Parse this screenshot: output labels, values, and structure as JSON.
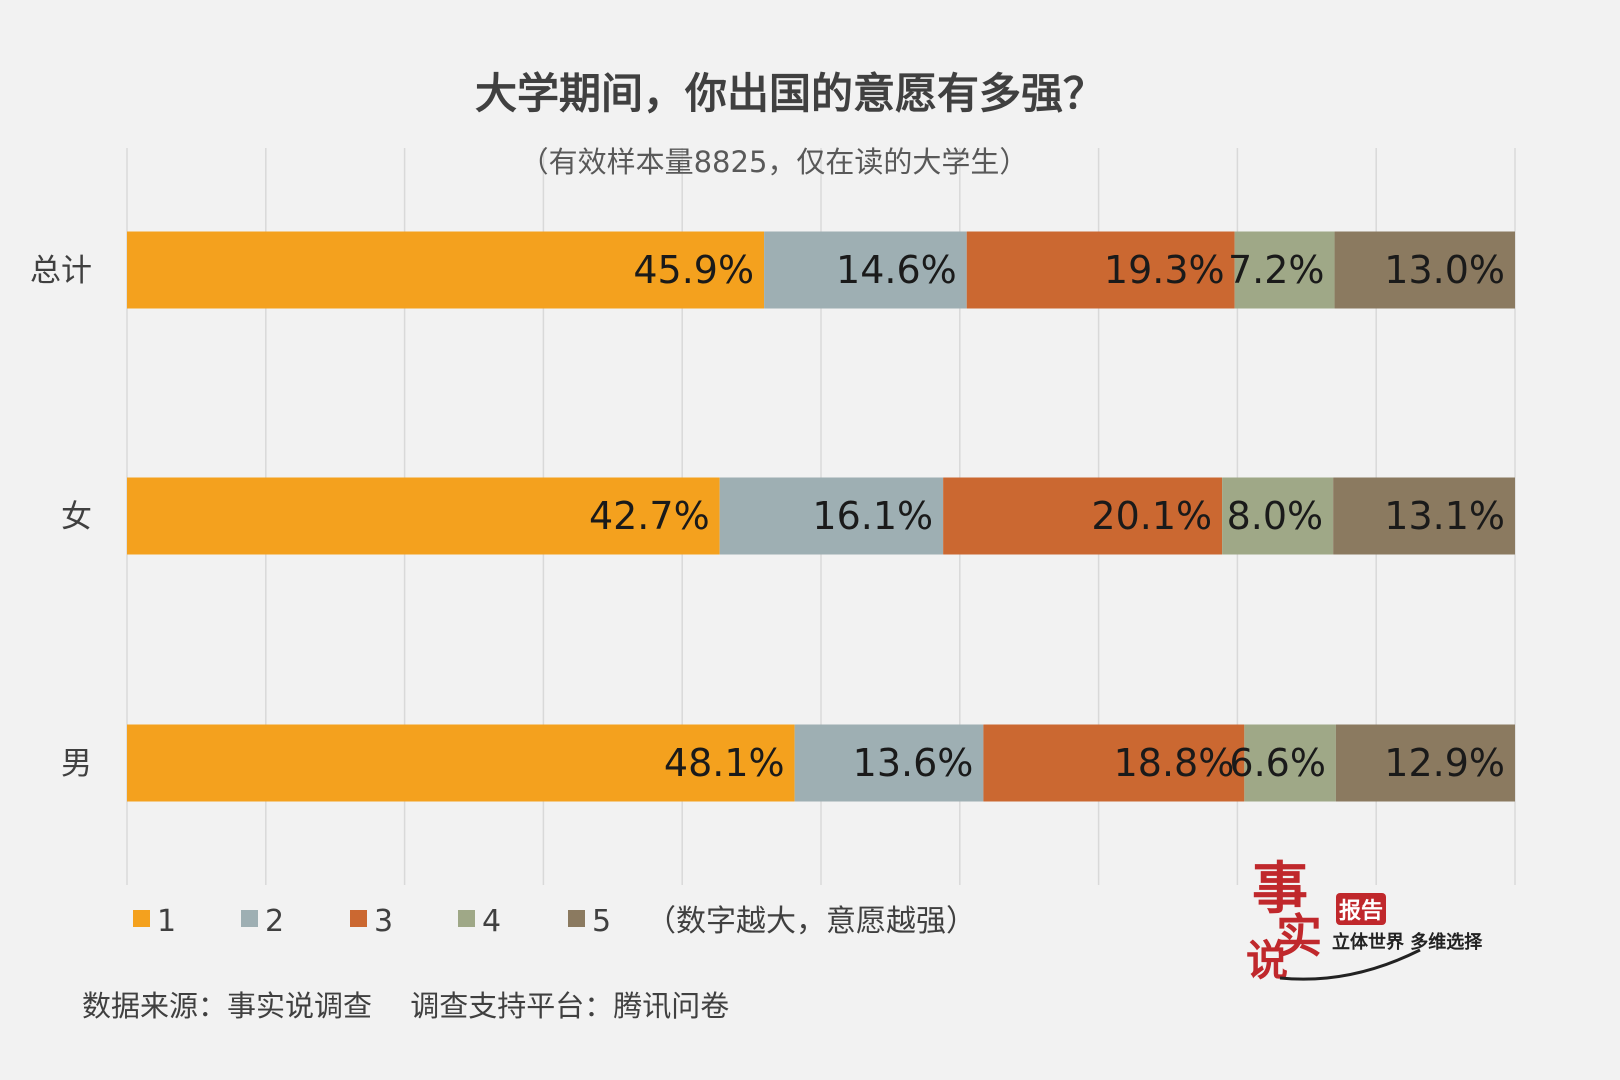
{
  "chart_data": {
    "type": "bar",
    "orientation": "horizontal",
    "stacked": true,
    "title": "大学期间，你出国的意愿有多强？",
    "subtitle": "（有效样本量8825，仅在读的大学生）",
    "categories": [
      "总计",
      "女",
      "男"
    ],
    "series": [
      {
        "name": "1",
        "values": [
          45.9,
          42.7,
          48.1
        ],
        "labels": [
          "45.9%",
          "42.7%",
          "48.1%"
        ],
        "color": "#f4a11e"
      },
      {
        "name": "2",
        "values": [
          14.6,
          16.1,
          13.6
        ],
        "labels": [
          "14.6%",
          "16.1%",
          "13.6%"
        ],
        "color": "#9eafb3"
      },
      {
        "name": "3",
        "values": [
          19.3,
          20.1,
          18.8
        ],
        "labels": [
          "19.3%",
          "20.1%",
          "18.8%"
        ],
        "color": "#cb6831"
      },
      {
        "name": "4",
        "values": [
          7.2,
          8.0,
          6.6
        ],
        "labels": [
          "7.2%",
          "8.0%",
          "6.6%"
        ],
        "color": "#9fa887"
      },
      {
        "name": "5",
        "values": [
          13.0,
          13.1,
          12.9
        ],
        "labels": [
          "13.0%",
          "13.1%",
          "12.9%"
        ],
        "color": "#8b7a60"
      }
    ],
    "xlim": [
      0,
      100
    ],
    "grid": true,
    "legend_position": "bottom-left",
    "legend_note": "（数字越大，意愿越强）"
  },
  "footer": {
    "source": "数据来源：事实说调查　 调查支持平台：腾讯问卷"
  },
  "logo": {
    "glyph_1": "事",
    "glyph_2": "实",
    "glyph_3": "说",
    "badge": "报告",
    "slogan": "立体世界 多维选择"
  }
}
